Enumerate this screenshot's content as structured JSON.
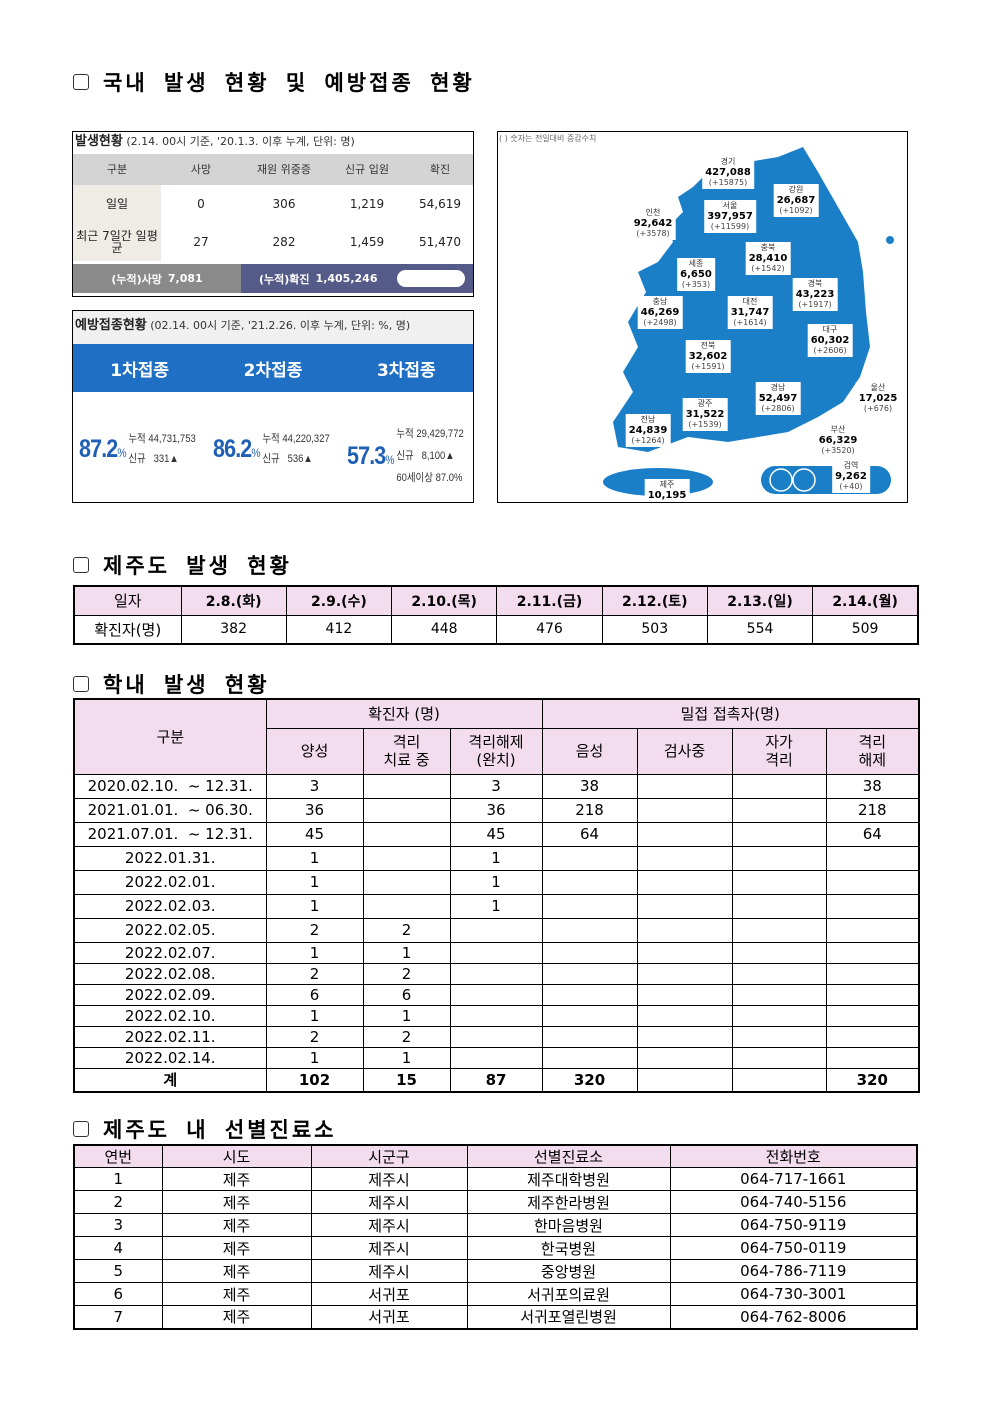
{
  "sections": {
    "national": "국내 발생 현황 및 예방접종 현황",
    "jeju": "제주도 발생 현황",
    "school": "학내 발생 현황",
    "clinics": "제주도 내 선별진료소"
  },
  "occurrence": {
    "title": "발생현황",
    "subtitle": "(2.14. 00시 기준, '20.1.3. 이후 누계, 단위: 명)",
    "headers": [
      "구분",
      "사망",
      "재원 위중증",
      "신규 입원",
      "확진"
    ],
    "rows": [
      [
        "일일",
        "0",
        "306",
        "1,219",
        "54,619"
      ],
      [
        "최근 7일간 일평균",
        "27",
        "282",
        "1,459",
        "51,470"
      ]
    ],
    "cum_death_label": "(누적)사망",
    "cum_death": "7,081",
    "cum_conf_label": "(누적)확진",
    "cum_conf": "1,405,246"
  },
  "vaccination": {
    "title": "예방접종현황",
    "subtitle": "(02.14. 00시 기준, '21.2.26. 이후 누계, 단위: %, 명)",
    "doses": [
      {
        "label": "1차접종",
        "pct": "87.2",
        "cum_label": "누적",
        "cum": "44,731,753",
        "new_label": "신규",
        "new": "331▲"
      },
      {
        "label": "2차접종",
        "pct": "86.2",
        "cum_label": "누적",
        "cum": "44,220,327",
        "new_label": "신규",
        "new": "536▲"
      },
      {
        "label": "3차접종",
        "pct": "57.3",
        "cum_label": "누적",
        "cum": "29,429,772",
        "new_label": "신규",
        "new": "8,100▲",
        "age_label": "60세이상",
        "age": "87.0%"
      }
    ],
    "pct_unit": "%"
  },
  "map": {
    "note": "( ) 숫자는 전일대비 증감수치",
    "color": "#1b7fc8",
    "regions": [
      {
        "name": "경기",
        "value": "427,088",
        "delta": "(+15875)"
      },
      {
        "name": "강원",
        "value": "26,687",
        "delta": "(+1092)"
      },
      {
        "name": "인천",
        "value": "92,642",
        "delta": "(+3578)"
      },
      {
        "name": "서울",
        "value": "397,957",
        "delta": "(+11599)"
      },
      {
        "name": "충북",
        "value": "28,410",
        "delta": "(+1542)"
      },
      {
        "name": "세종",
        "value": "6,650",
        "delta": "(+353)"
      },
      {
        "name": "충남",
        "value": "46,269",
        "delta": "(+2498)"
      },
      {
        "name": "대전",
        "value": "31,747",
        "delta": "(+1614)"
      },
      {
        "name": "경북",
        "value": "43,223",
        "delta": "(+1917)"
      },
      {
        "name": "대구",
        "value": "60,302",
        "delta": "(+2606)"
      },
      {
        "name": "전북",
        "value": "32,602",
        "delta": "(+1591)"
      },
      {
        "name": "경남",
        "value": "52,497",
        "delta": "(+2806)"
      },
      {
        "name": "울산",
        "value": "17,025",
        "delta": "(+676)"
      },
      {
        "name": "광주",
        "value": "31,522",
        "delta": "(+1539)"
      },
      {
        "name": "부산",
        "value": "66,329",
        "delta": "(+3520)"
      },
      {
        "name": "전남",
        "value": "24,839",
        "delta": "(+1264)"
      },
      {
        "name": "검역",
        "value": "9,262",
        "delta": "(+40)"
      },
      {
        "name": "제주",
        "value": "10,195",
        "delta": "(+509)"
      }
    ]
  },
  "jeju": {
    "row_labels": [
      "일자",
      "확진자(명)"
    ],
    "dates": [
      "2.8.(화)",
      "2.9.(수)",
      "2.10.(목)",
      "2.11.(금)",
      "2.12.(토)",
      "2.13.(일)",
      "2.14.(월)"
    ],
    "counts": [
      "382",
      "412",
      "448",
      "476",
      "503",
      "554",
      "509"
    ]
  },
  "school": {
    "h_category": "구분",
    "h_confirmed": "확진자 (명)",
    "h_contacts": "밀접 접촉자(명)",
    "sub": [
      "양성",
      "격리\n치료 중",
      "격리해제\n(완치)",
      "음성",
      "검사중",
      "자가\n격리",
      "격리\n해제"
    ],
    "rows": [
      [
        "2020.02.10.  ~ 12.31.",
        "3",
        "",
        "3",
        "38",
        "",
        "",
        "38"
      ],
      [
        "2021.01.01.  ~ 06.30.",
        "36",
        "",
        "36",
        "218",
        "",
        "",
        "218"
      ],
      [
        "2021.07.01.  ~ 12.31.",
        "45",
        "",
        "45",
        "64",
        "",
        "",
        "64"
      ],
      [
        "2022.01.31.",
        "1",
        "",
        "1",
        "",
        "",
        "",
        ""
      ],
      [
        "2022.02.01.",
        "1",
        "",
        "1",
        "",
        "",
        "",
        ""
      ],
      [
        "2022.02.03.",
        "1",
        "",
        "1",
        "",
        "",
        "",
        ""
      ],
      [
        "2022.02.05.",
        "2",
        "2",
        "",
        "",
        "",
        "",
        ""
      ],
      [
        "2022.02.07.",
        "1",
        "1",
        "",
        "",
        "",
        "",
        ""
      ],
      [
        "2022.02.08.",
        "2",
        "2",
        "",
        "",
        "",
        "",
        ""
      ],
      [
        "2022.02.09.",
        "6",
        "6",
        "",
        "",
        "",
        "",
        ""
      ],
      [
        "2022.02.10.",
        "1",
        "1",
        "",
        "",
        "",
        "",
        ""
      ],
      [
        "2022.02.11.",
        "2",
        "2",
        "",
        "",
        "",
        "",
        ""
      ],
      [
        "2022.02.14.",
        "1",
        "1",
        "",
        "",
        "",
        "",
        ""
      ]
    ],
    "total": [
      "계",
      "102",
      "15",
      "87",
      "320",
      "",
      "",
      "320"
    ]
  },
  "clinics": {
    "headers": [
      "연번",
      "시도",
      "시군구",
      "선별진료소",
      "전화번호"
    ],
    "rows": [
      [
        "1",
        "제주",
        "제주시",
        "제주대학병원",
        "064-717-1661"
      ],
      [
        "2",
        "제주",
        "제주시",
        "제주한라병원",
        "064-740-5156"
      ],
      [
        "3",
        "제주",
        "제주시",
        "한마음병원",
        "064-750-9119"
      ],
      [
        "4",
        "제주",
        "제주시",
        "한국병원",
        "064-750-0119"
      ],
      [
        "5",
        "제주",
        "제주시",
        "중앙병원",
        "064-786-7119"
      ],
      [
        "6",
        "제주",
        "서귀포",
        "서귀포의료원",
        "064-730-3001"
      ],
      [
        "7",
        "제주",
        "서귀포",
        "서귀포열린병원",
        "064-762-8006"
      ]
    ]
  }
}
